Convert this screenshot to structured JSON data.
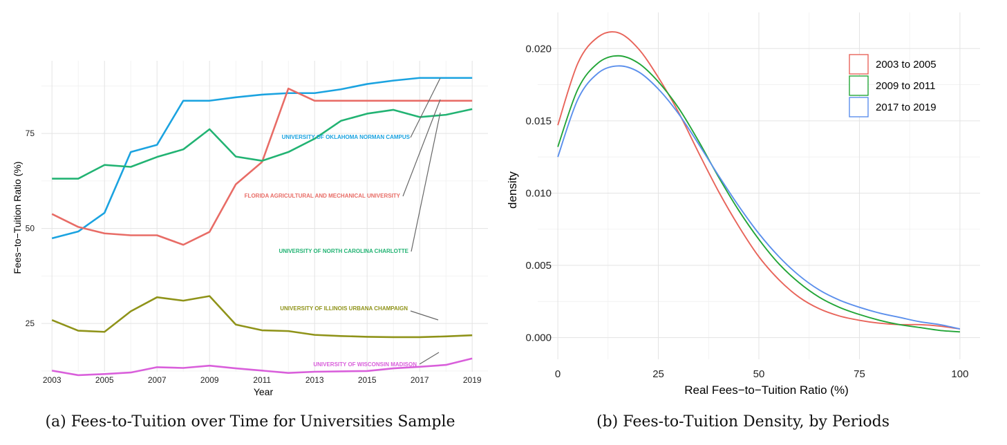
{
  "captions": {
    "left": "(a) Fees-to-Tuition over Time for Universities Sample",
    "right": "(b) Fees-to-Tuition Density, by Periods"
  },
  "chart_data": [
    {
      "type": "line",
      "title": "",
      "xlabel": "Year",
      "ylabel": "Fees−to−Tuition Ratio (%)",
      "xlim": [
        2002.6,
        2019.6
      ],
      "ylim": [
        12.3,
        94.1
      ],
      "x_ticks": [
        2003,
        2005,
        2007,
        2009,
        2011,
        2013,
        2015,
        2017,
        2019
      ],
      "y_ticks": [
        25,
        50,
        75
      ],
      "grid": true,
      "legend": "none (direct labels)",
      "x": [
        2003,
        2004,
        2005,
        2006,
        2007,
        2008,
        2009,
        2010,
        2011,
        2012,
        2013,
        2014,
        2015,
        2016,
        2017,
        2018,
        2019
      ],
      "series": [
        {
          "name": "UNIVERSITY OF OKLAHOMA NORMAN CAMPUS",
          "color": "#1ba3e0",
          "values": [
            47.4,
            49.2,
            54.1,
            70.1,
            72.0,
            83.6,
            83.6,
            84.5,
            85.2,
            85.6,
            85.6,
            86.6,
            88.0,
            88.9,
            89.6,
            89.6,
            89.6
          ]
        },
        {
          "name": "FLORIDA AGRICULTURAL AND MECHANICAL UNIVERSITY",
          "color": "#e86c66",
          "values": [
            53.8,
            50.4,
            48.7,
            48.2,
            48.2,
            45.7,
            49.1,
            61.6,
            67.5,
            86.8,
            83.6,
            83.6,
            83.6,
            83.6,
            83.6,
            83.6,
            83.6
          ]
        },
        {
          "name": "UNIVERSITY OF NORTH CAROLINA  CHARLOTTE",
          "color": "#22b373",
          "values": [
            63.1,
            63.1,
            66.7,
            66.2,
            68.8,
            70.8,
            76.1,
            68.9,
            67.8,
            70.1,
            73.6,
            78.3,
            80.2,
            81.2,
            79.3,
            79.9,
            81.4
          ]
        },
        {
          "name": "UNIVERSITY OF ILLINOIS  URBANA CHAMPAIGN",
          "color": "#8f9319",
          "values": [
            25.9,
            23.1,
            22.8,
            28.2,
            31.9,
            31.0,
            32.2,
            24.7,
            23.2,
            23.0,
            22.0,
            21.7,
            21.5,
            21.4,
            21.4,
            21.6,
            21.9
          ]
        },
        {
          "name": "UNIVERSITY OF WISCONSIN MADISON",
          "color": "#d95fdb",
          "values": [
            12.6,
            11.4,
            11.7,
            12.1,
            13.5,
            13.3,
            13.9,
            13.2,
            12.6,
            12.0,
            12.3,
            12.4,
            12.5,
            13.2,
            13.6,
            14.1,
            15.8
          ]
        }
      ]
    },
    {
      "type": "line",
      "title": "",
      "xlabel": "Real Fees−to−Tuition Ratio (%)",
      "ylabel": "density",
      "xlim": [
        -5,
        105
      ],
      "ylim": [
        -0.0015,
        0.0225
      ],
      "x_ticks": [
        0,
        25,
        50,
        75,
        100
      ],
      "y_ticks": [
        "0.000",
        "0.005",
        "0.010",
        "0.015",
        "0.020"
      ],
      "grid": true,
      "legend": "top-right",
      "x": [
        0,
        5,
        10,
        15,
        20,
        25,
        30,
        35,
        40,
        45,
        50,
        55,
        60,
        65,
        70,
        75,
        80,
        85,
        90,
        95,
        100
      ],
      "series": [
        {
          "name": "2003 to 2005",
          "color": "#e8645a",
          "values": [
            0.0147,
            0.019,
            0.0208,
            0.0211,
            0.02,
            0.018,
            0.0156,
            0.0128,
            0.0101,
            0.0077,
            0.0056,
            0.004,
            0.0028,
            0.002,
            0.0015,
            0.0012,
            0.001,
            0.0009,
            0.0009,
            0.0008,
            0.0006
          ]
        },
        {
          "name": "2009 to 2011",
          "color": "#22a537",
          "values": [
            0.0132,
            0.0172,
            0.019,
            0.0195,
            0.019,
            0.0177,
            0.0159,
            0.0136,
            0.0111,
            0.0088,
            0.0068,
            0.0051,
            0.0038,
            0.0028,
            0.0021,
            0.0016,
            0.0012,
            0.0009,
            0.0007,
            0.0005,
            0.0004
          ]
        },
        {
          "name": "2017 to 2019",
          "color": "#5b8fec",
          "values": [
            0.0125,
            0.0165,
            0.0183,
            0.0188,
            0.0184,
            0.0172,
            0.0155,
            0.0134,
            0.0112,
            0.0091,
            0.0072,
            0.0056,
            0.0043,
            0.0033,
            0.0026,
            0.0021,
            0.0017,
            0.0014,
            0.0011,
            0.0009,
            0.0006
          ]
        }
      ]
    }
  ]
}
